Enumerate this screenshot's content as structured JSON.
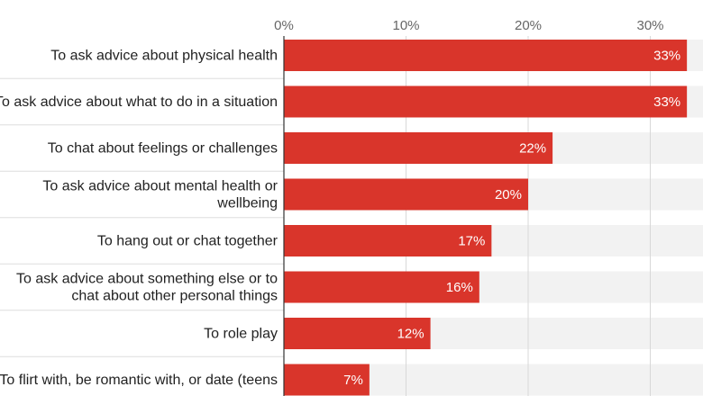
{
  "chart_data": {
    "type": "bar",
    "orientation": "horizontal",
    "categories": [
      [
        "To ask advice about physical health"
      ],
      [
        "To ask advice about what to do in a situation"
      ],
      [
        "To chat about feelings or challenges"
      ],
      [
        "To ask advice about mental health or",
        "wellbeing"
      ],
      [
        "To hang out or chat together"
      ],
      [
        "To ask advice about something else or to",
        "chat about other personal things"
      ],
      [
        "To role play"
      ],
      [
        "To flirt with, be romantic with, or date (teens"
      ]
    ],
    "values": [
      33,
      33,
      22,
      20,
      17,
      16,
      12,
      7
    ],
    "value_labels": [
      "33%",
      "33%",
      "22%",
      "20%",
      "17%",
      "16%",
      "12%",
      "7%"
    ],
    "x_ticks": [
      0,
      10,
      20,
      30
    ],
    "x_tick_labels": [
      "0%",
      "10%",
      "20%",
      "30%"
    ],
    "xlim": [
      0,
      34
    ],
    "grid": true,
    "colors": {
      "bar": "#d9352b",
      "track": "#f2f2f2"
    }
  }
}
